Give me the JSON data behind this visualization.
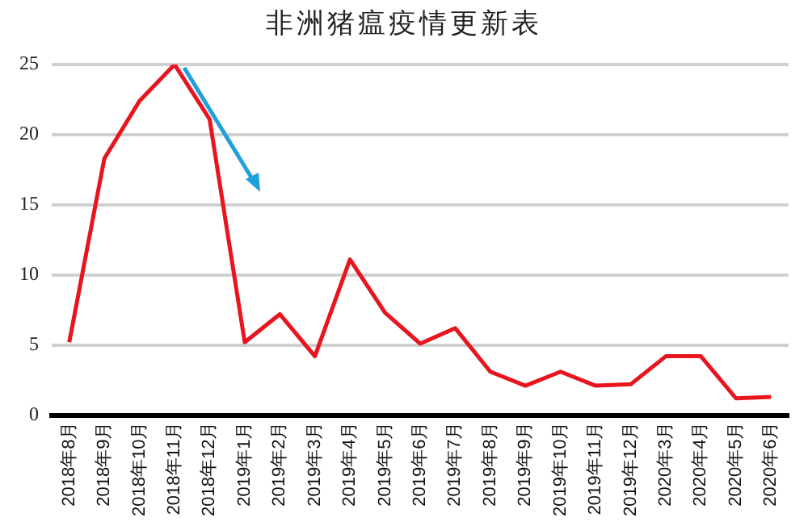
{
  "chart_data": {
    "type": "line",
    "title": "非洲猪瘟疫情更新表",
    "categories": [
      "2018年8月",
      "2018年9月",
      "2018年10月",
      "2018年11月",
      "2018年12月",
      "2019年1月",
      "2019年2月",
      "2019年3月",
      "2019年4月",
      "2019年5月",
      "2019年6月",
      "2019年7月",
      "2019年8月",
      "2019年9月",
      "2019年10月",
      "2019年11月",
      "2019年12月",
      "2020年3月",
      "2020年4月",
      "2020年5月",
      "2020年6月"
    ],
    "series": [
      {
        "color": "#e8141e",
        "values": [
          5.2,
          18.3,
          22.4,
          25,
          21.1,
          5.2,
          7.2,
          4.2,
          11.1,
          7.3,
          5.1,
          6.2,
          3.1,
          2.1,
          3.1,
          2.1,
          2.2,
          4.2,
          4.2,
          1.2,
          1.3
        ]
      }
    ],
    "ylim": [
      0,
      25
    ],
    "yticks": [
      0,
      5,
      10,
      15,
      20,
      25
    ],
    "grid": "y",
    "legend": false,
    "marker": "none",
    "line_style": "solid"
  }
}
